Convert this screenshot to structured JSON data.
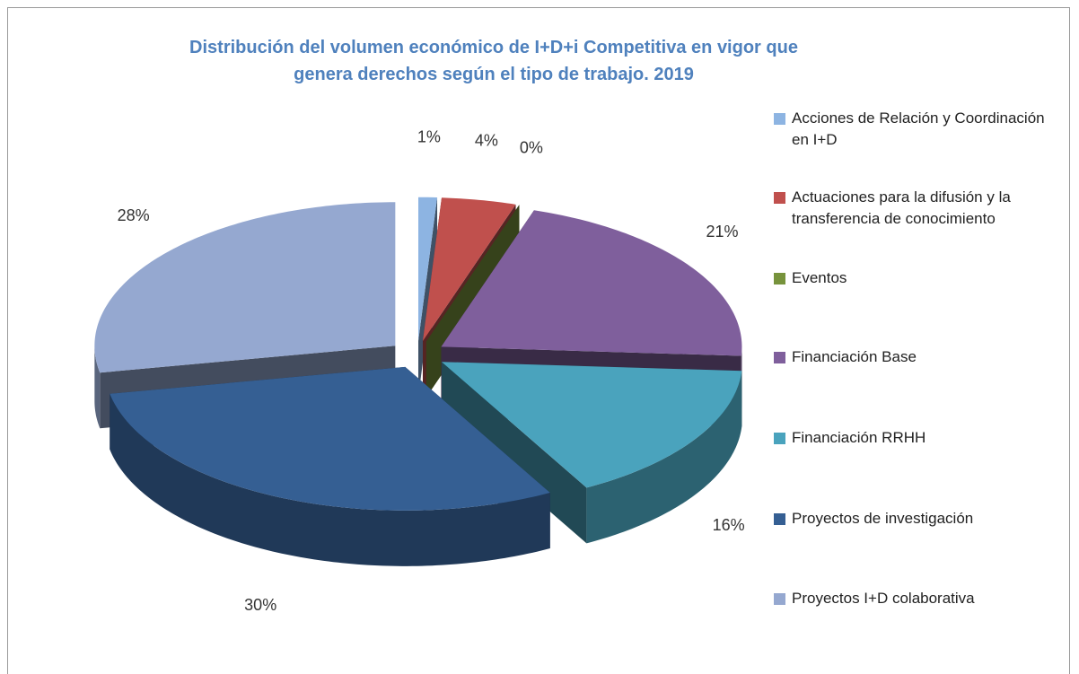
{
  "chart_data": {
    "type": "pie",
    "title": "Distribución del volumen económico de I+D+i Competitiva en vigor que\ngenera derechos según el tipo de trabajo. 2019",
    "categories": [
      "Acciones de Relación y Coordinación en I+D",
      "Actuaciones para la difusión y la transferencia de conocimiento",
      "Eventos",
      "Financiación Base",
      "Financiación RRHH",
      "Proyectos de investigación",
      "Proyectos I+D colaborativa"
    ],
    "values": [
      1,
      4,
      0,
      21,
      16,
      30,
      28
    ],
    "value_labels": [
      "1%",
      "4%",
      "0%",
      "21%",
      "16%",
      "30%",
      "28%"
    ],
    "colors": [
      "#8db4e2",
      "#c0504d",
      "#77933c",
      "#7f5f9c",
      "#4aa3bd",
      "#355f93",
      "#95a8d0"
    ],
    "legend": "right"
  }
}
